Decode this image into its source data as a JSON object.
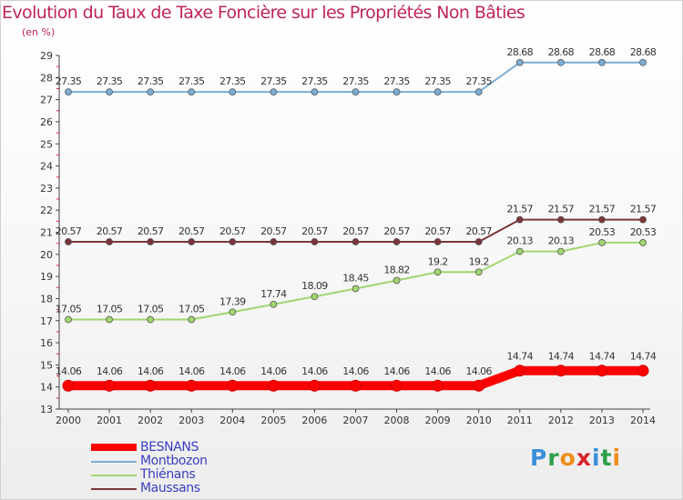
{
  "chart_data": {
    "type": "line",
    "title": "Evolution du Taux de Taxe Foncière sur les Propriétés Non Bâties",
    "unit_label": "(en %)",
    "xlabel": "",
    "ylabel": "(en %)",
    "ylim": [
      13,
      29
    ],
    "y_ticks": [
      13,
      14,
      15,
      16,
      17,
      18,
      19,
      20,
      21,
      22,
      23,
      24,
      25,
      26,
      27,
      28,
      29
    ],
    "categories": [
      "2000",
      "2001",
      "2002",
      "2003",
      "2004",
      "2005",
      "2006",
      "2007",
      "2008",
      "2009",
      "2010",
      "2011",
      "2012",
      "2013",
      "2014"
    ],
    "series": [
      {
        "name": "BESNANS",
        "color": "#ff0000",
        "values": [
          14.06,
          14.06,
          14.06,
          14.06,
          14.06,
          14.06,
          14.06,
          14.06,
          14.06,
          14.06,
          14.06,
          14.74,
          14.74,
          14.74,
          14.74
        ],
        "labels": [
          "14.06",
          "14.06",
          "14.06",
          "14.06",
          "14.06",
          "14.06",
          "14.06",
          "14.06",
          "14.06",
          "14.06",
          "14.06",
          "14.74",
          "14.74",
          "14.74",
          "14.74"
        ]
      },
      {
        "name": "Montbozon",
        "color": "#7aaed6",
        "values": [
          27.35,
          27.35,
          27.35,
          27.35,
          27.35,
          27.35,
          27.35,
          27.35,
          27.35,
          27.35,
          27.35,
          28.68,
          28.68,
          28.68,
          28.68
        ],
        "labels": [
          "27.35",
          "27.35",
          "27.35",
          "27.35",
          "27.35",
          "27.35",
          "27.35",
          "27.35",
          "27.35",
          "27.35",
          "27.35",
          "28.68",
          "28.68",
          "28.68",
          "28.68"
        ]
      },
      {
        "name": "Thiénans",
        "color": "#a2d56f",
        "values": [
          17.05,
          17.05,
          17.05,
          17.05,
          17.39,
          17.74,
          18.09,
          18.45,
          18.82,
          19.2,
          19.2,
          20.13,
          20.13,
          20.53,
          20.53
        ],
        "labels": [
          "17.05",
          "17.05",
          "17.05",
          "17.05",
          "17.39",
          "17.74",
          "18.09",
          "18.45",
          "18.82",
          "19.2",
          "19.2",
          "20.13",
          "20.13",
          "20.53",
          "20.53"
        ]
      },
      {
        "name": "Maussans",
        "color": "#7b3539",
        "values": [
          20.57,
          20.57,
          20.57,
          20.57,
          20.57,
          20.57,
          20.57,
          20.57,
          20.57,
          20.57,
          20.57,
          21.57,
          21.57,
          21.57,
          21.57
        ],
        "labels": [
          "20.57",
          "20.57",
          "20.57",
          "20.57",
          "20.57",
          "20.57",
          "20.57",
          "20.57",
          "20.57",
          "20.57",
          "20.57",
          "21.57",
          "21.57",
          "21.57",
          "21.57"
        ]
      }
    ],
    "legend_placement": "bottom-left",
    "grid": false
  },
  "branding": {
    "logo_text": "Proxiti",
    "letter_colors": [
      "#3b8fd8",
      "#2f9f4a",
      "#f08c1a",
      "#d8242c",
      "#3b8fd8",
      "#2f9f4a",
      "#f08c1a"
    ]
  }
}
